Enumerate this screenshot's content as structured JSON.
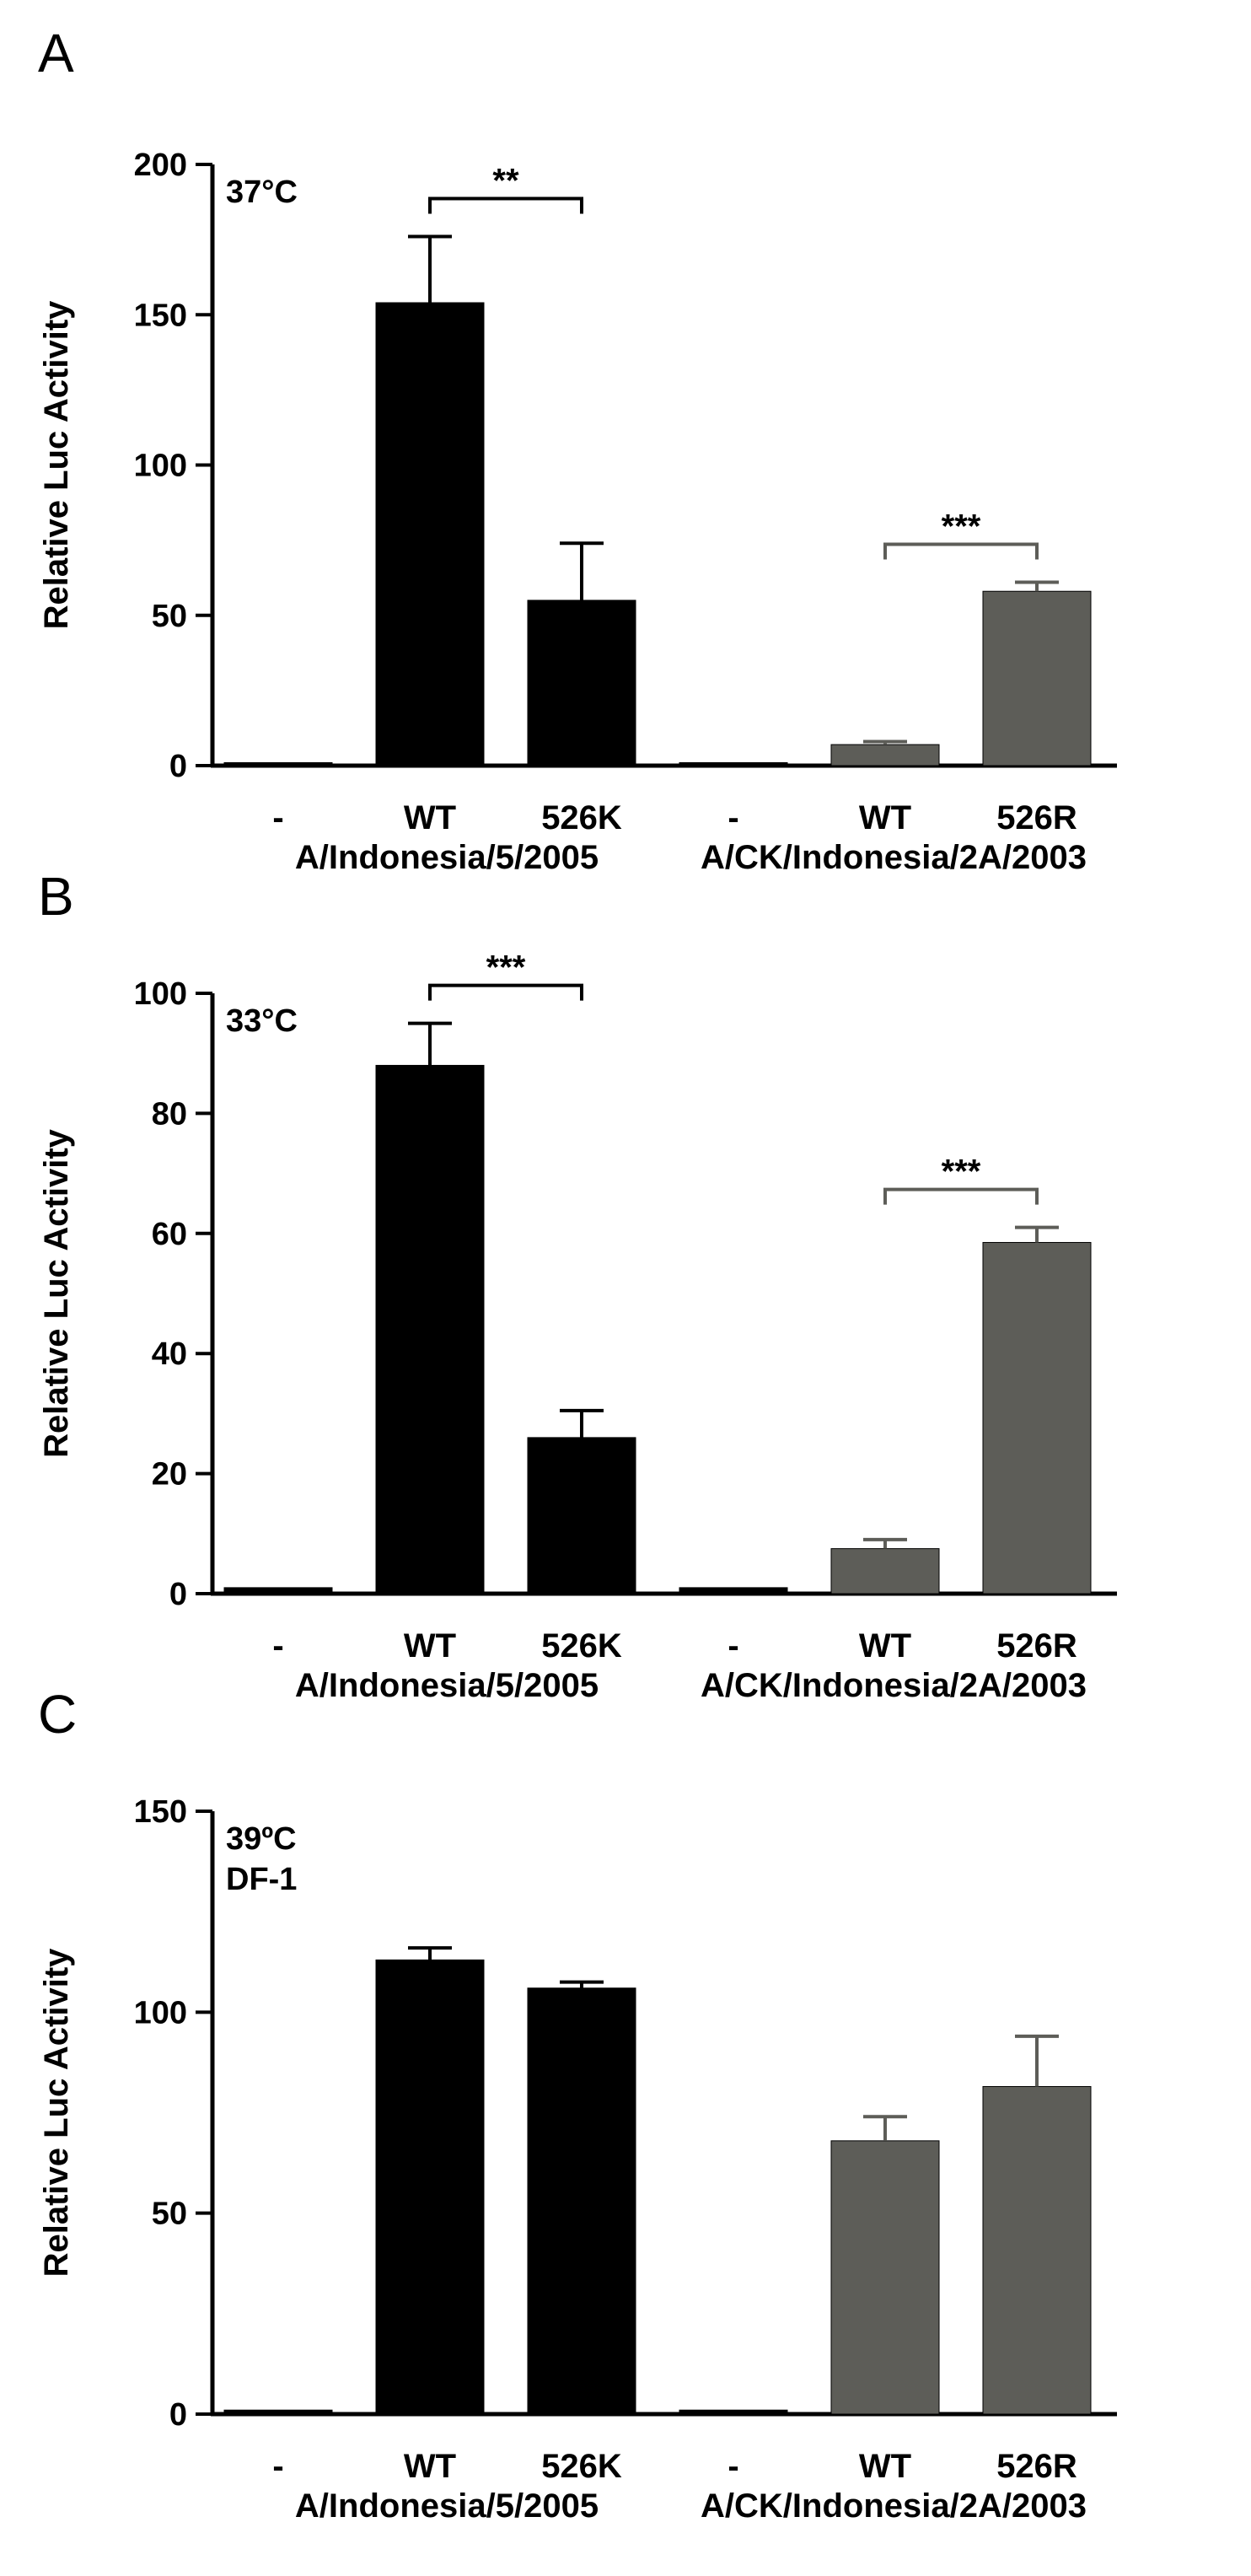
{
  "chart_data": [
    {
      "panel": "A",
      "type": "bar",
      "condition": [
        "37°C"
      ],
      "ylabel": "Relative Luc Activity",
      "ylim": [
        0,
        200
      ],
      "yticks": [
        0,
        50,
        100,
        150,
        200
      ],
      "categories": [
        "-",
        "WT",
        "526K",
        "-",
        "WT",
        "526R"
      ],
      "groups": [
        "A/Indonesia/5/2005",
        "A/CK/Indonesia/2A/2003"
      ],
      "values": [
        1,
        154,
        55,
        1,
        7,
        58
      ],
      "errors": [
        0,
        22,
        19,
        0,
        1,
        3
      ],
      "colors": [
        "#000000",
        "#000000",
        "#000000",
        "#000000",
        "#5d5d58",
        "#5d5d58"
      ],
      "significance": [
        {
          "from": 1,
          "to": 2,
          "label": "**"
        },
        {
          "from": 4,
          "to": 5,
          "label": "***"
        }
      ]
    },
    {
      "panel": "B",
      "type": "bar",
      "condition": [
        "33°C"
      ],
      "ylabel": "Relative Luc Activity",
      "ylim": [
        0,
        100
      ],
      "yticks": [
        0,
        20,
        40,
        60,
        80,
        100
      ],
      "categories": [
        "-",
        "WT",
        "526K",
        "-",
        "WT",
        "526R"
      ],
      "groups": [
        "A/Indonesia/5/2005",
        "A/CK/Indonesia/2A/2003"
      ],
      "values": [
        1,
        88,
        26,
        1,
        7.5,
        58.5
      ],
      "errors": [
        0,
        7,
        4.5,
        0,
        1.5,
        2.5
      ],
      "colors": [
        "#000000",
        "#000000",
        "#000000",
        "#000000",
        "#5d5d58",
        "#5d5d58"
      ],
      "significance": [
        {
          "from": 1,
          "to": 2,
          "label": "***"
        },
        {
          "from": 4,
          "to": 5,
          "label": "***"
        }
      ]
    },
    {
      "panel": "C",
      "type": "bar",
      "condition": [
        "39ºC",
        "DF-1"
      ],
      "ylabel": "Relative Luc Activity",
      "ylim": [
        0,
        150
      ],
      "yticks": [
        0,
        50,
        100,
        150
      ],
      "categories": [
        "-",
        "WT",
        "526K",
        "-",
        "WT",
        "526R"
      ],
      "groups": [
        "A/Indonesia/5/2005",
        "A/CK/Indonesia/2A/2003"
      ],
      "values": [
        1,
        113,
        106,
        1,
        68,
        81.5
      ],
      "errors": [
        0,
        3,
        1.5,
        0,
        6,
        12.5
      ],
      "colors": [
        "#000000",
        "#000000",
        "#000000",
        "#000000",
        "#5d5d58",
        "#5d5d58"
      ],
      "significance": []
    }
  ]
}
